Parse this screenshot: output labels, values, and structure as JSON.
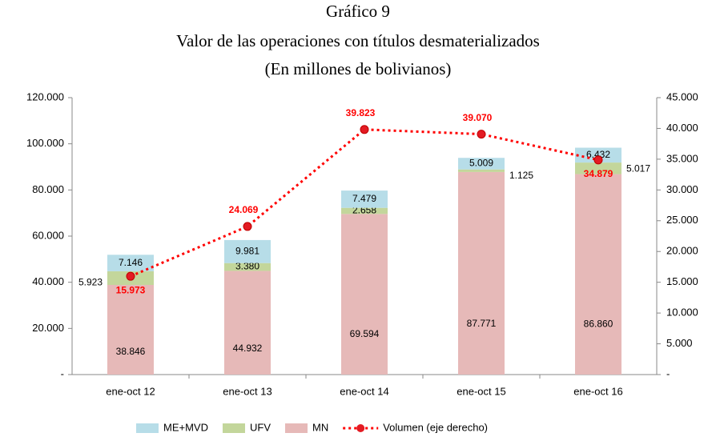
{
  "chart_data": {
    "type": "bar",
    "title": [
      "Gráfico 9",
      "Valor de las operaciones con títulos desmaterializados",
      "(En millones de bolivianos)"
    ],
    "categories": [
      "ene-oct 12",
      "ene-oct 13",
      "ene-oct 14",
      "ene-oct 15",
      "ene-oct 16"
    ],
    "series": [
      {
        "name": "ME+MVD",
        "color": "#b7dde8",
        "values": [
          7146,
          9981,
          7479,
          5009,
          6432
        ],
        "value_labels": [
          "7.146",
          "9.981",
          "7.479",
          "5.009",
          "6.432"
        ]
      },
      {
        "name": "UFV",
        "color": "#c3d69b",
        "values": [
          5923,
          3380,
          2658,
          1125,
          5017
        ],
        "value_labels": [
          "5.923",
          "3.380",
          "2.658",
          "1.125",
          "5.017"
        ]
      },
      {
        "name": "MN",
        "color": "#e6b9b8",
        "values": [
          38846,
          44932,
          69594,
          87771,
          86860
        ],
        "value_labels": [
          "38.846",
          "44.932",
          "69.594",
          "87.771",
          "86.860"
        ]
      },
      {
        "name": "Volumen (eje derecho)",
        "type": "line",
        "axis": "y2",
        "color": "#ff0000",
        "values": [
          15973,
          24069,
          39823,
          39070,
          34879
        ],
        "value_labels": [
          "15.973",
          "24.069",
          "39.823",
          "39.070",
          "34.879"
        ]
      }
    ],
    "ylim": [
      0,
      120000
    ],
    "yticks": [
      {
        "value": 0,
        "label": "-"
      },
      {
        "value": 20000,
        "label": "20.000"
      },
      {
        "value": 40000,
        "label": "40.000"
      },
      {
        "value": 60000,
        "label": "60.000"
      },
      {
        "value": 80000,
        "label": "80.000"
      },
      {
        "value": 100000,
        "label": "100.000"
      },
      {
        "value": 120000,
        "label": "120.000"
      }
    ],
    "y2lim": [
      0,
      45000
    ],
    "y2ticks": [
      {
        "value": 0,
        "label": "-"
      },
      {
        "value": 5000,
        "label": "5.000"
      },
      {
        "value": 10000,
        "label": "10.000"
      },
      {
        "value": 15000,
        "label": "15.000"
      },
      {
        "value": 20000,
        "label": "20.000"
      },
      {
        "value": 25000,
        "label": "25.000"
      },
      {
        "value": 30000,
        "label": "30.000"
      },
      {
        "value": 35000,
        "label": "35.000"
      },
      {
        "value": 40000,
        "label": "40.000"
      },
      {
        "value": 45000,
        "label": "45.000"
      }
    ],
    "legend": "bottom"
  }
}
